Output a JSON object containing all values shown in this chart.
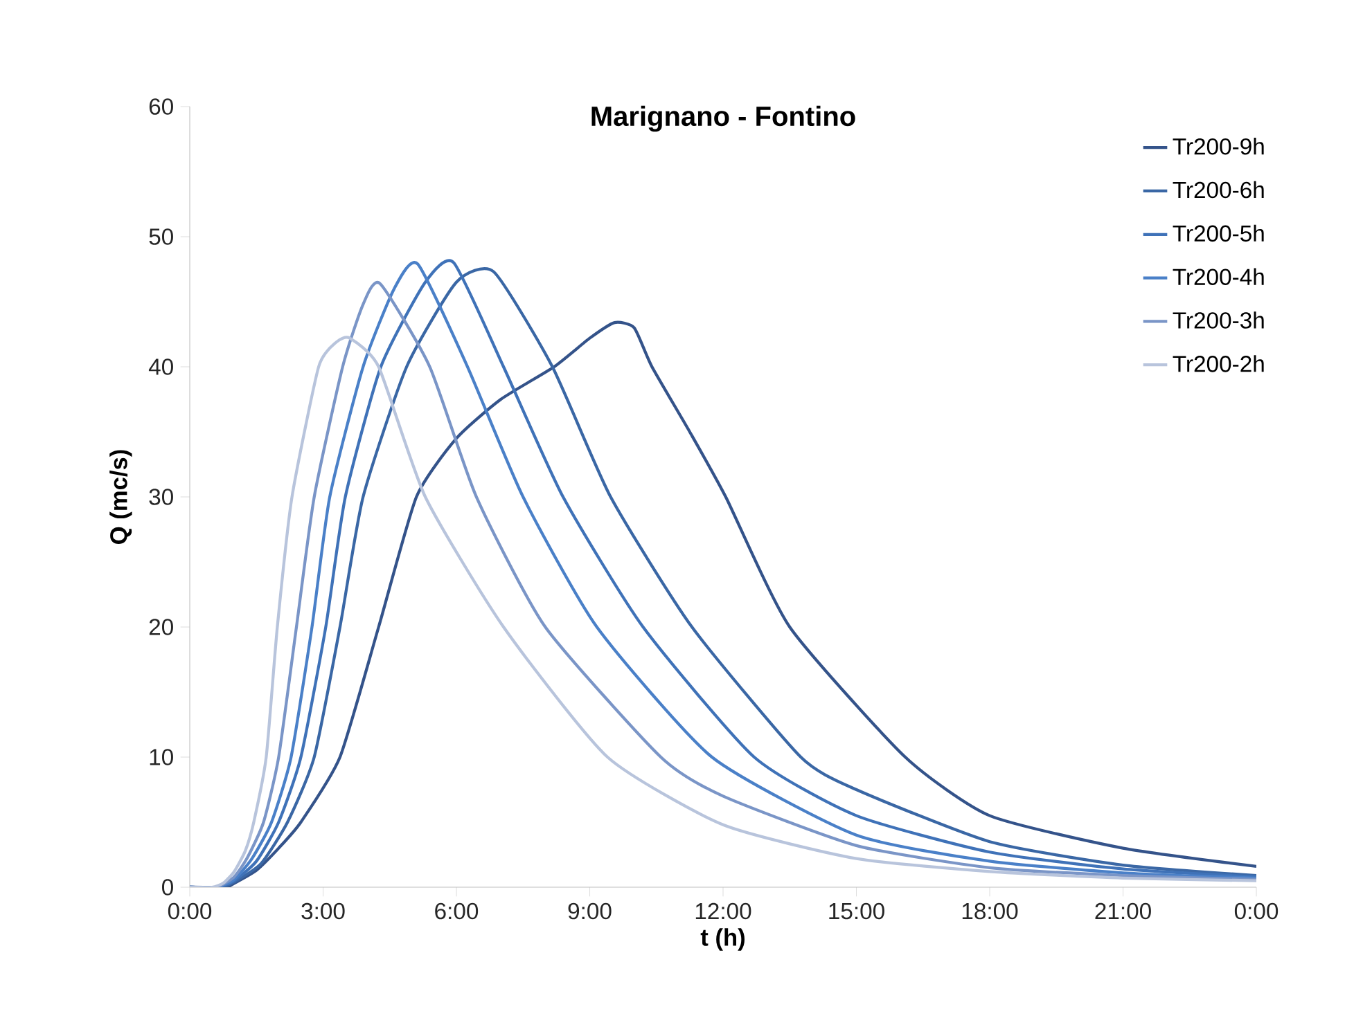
{
  "chart_data": {
    "type": "line",
    "title": "Marignano - Fontino",
    "xlabel": "t (h)",
    "ylabel": "Q (mc/s)",
    "xlim": [
      0,
      24
    ],
    "xticks": [
      {
        "value": 0,
        "label": "0:00"
      },
      {
        "value": 3,
        "label": "3:00"
      },
      {
        "value": 6,
        "label": "6:00"
      },
      {
        "value": 9,
        "label": "9:00"
      },
      {
        "value": 12,
        "label": "12:00"
      },
      {
        "value": 15,
        "label": "15:00"
      },
      {
        "value": 18,
        "label": "18:00"
      },
      {
        "value": 21,
        "label": "21:00"
      },
      {
        "value": 24,
        "label": "0:00"
      }
    ],
    "ylim": [
      0,
      60
    ],
    "yticks": [
      0,
      10,
      20,
      30,
      40,
      50,
      60
    ],
    "grid": false,
    "legend": "top right",
    "marker": "none",
    "line_style": "solid",
    "series": [
      {
        "name": "Tr200-9h",
        "color": "#34538a",
        "x": [
          0,
          0.8,
          1,
          1.5,
          2,
          2.5,
          3.38,
          4.25,
          5.1,
          6,
          7,
          8.2,
          9,
          9.56,
          10,
          10.4,
          11.25,
          12.06,
          13.5,
          16.1,
          18,
          21,
          24
        ],
        "values": [
          0,
          0,
          0.3,
          1.3,
          3,
          5,
          10,
          20,
          30,
          34.5,
          37.5,
          40,
          42.2,
          43.4,
          43,
          40,
          35,
          30,
          20,
          10,
          5.5,
          3,
          1.6
        ]
      },
      {
        "name": "Tr200-6h",
        "color": "#3a67a5",
        "x": [
          0,
          0.7,
          1,
          1.6,
          2.2,
          2.8,
          3.38,
          3.9,
          4.88,
          6,
          6.84,
          8.16,
          9.47,
          11.3,
          13.75,
          15,
          18,
          21,
          24
        ],
        "values": [
          0,
          0,
          0.4,
          1.8,
          5,
          10,
          20,
          30,
          40,
          46.5,
          47.3,
          40,
          30,
          20,
          10,
          7.5,
          3.5,
          1.7,
          0.9
        ]
      },
      {
        "name": "Tr200-5h",
        "color": "#3f72b8",
        "x": [
          0,
          0.6,
          1,
          1.5,
          2,
          2.5,
          3.06,
          3.5,
          4.3,
          5.3,
          5.94,
          7.06,
          8.4,
          10.2,
          12.7,
          15,
          18,
          21,
          24
        ],
        "values": [
          0,
          0,
          0.5,
          2,
          5,
          10,
          20,
          30,
          40,
          46.5,
          48,
          40,
          30,
          20,
          10,
          5.5,
          2.7,
          1.4,
          0.8
        ]
      },
      {
        "name": "Tr200-4h",
        "color": "#4a80c8",
        "x": [
          0,
          0.6,
          1,
          1.4,
          1.84,
          2.28,
          2.75,
          3.15,
          3.9,
          4.6,
          5.13,
          6.25,
          7.5,
          9.16,
          11.75,
          15,
          18,
          21,
          24
        ],
        "values": [
          0,
          0,
          0.6,
          2.2,
          5,
          10,
          20,
          30,
          40,
          46,
          47.9,
          40,
          30,
          20,
          10,
          4,
          2,
          1.1,
          0.7
        ]
      },
      {
        "name": "Tr200-3h",
        "color": "#7a95c7",
        "x": [
          0,
          0.6,
          1,
          1.3,
          1.66,
          2,
          2.4,
          2.8,
          3.44,
          3.9,
          4.28,
          5.4,
          6.45,
          8,
          10.6,
          12,
          15,
          18,
          21,
          24
        ],
        "values": [
          0,
          0,
          0.8,
          2.3,
          5,
          10,
          20,
          30,
          40,
          44.8,
          46.4,
          40,
          30,
          20,
          10,
          7,
          3.2,
          1.5,
          0.9,
          0.6
        ]
      },
      {
        "name": "Tr200-2h",
        "color": "#b8c4dc",
        "x": [
          0,
          0.5,
          0.75,
          1,
          1.25,
          1.44,
          1.72,
          1.97,
          2.3,
          2.9,
          3.3,
          3.6,
          4.25,
          5.3,
          7.06,
          9.4,
          12,
          15,
          18,
          21,
          24
        ],
        "values": [
          0,
          0,
          0.3,
          1.2,
          2.8,
          5,
          10,
          20,
          30,
          40,
          41.9,
          42.2,
          40,
          30,
          20,
          10,
          4.8,
          2.2,
          1.2,
          0.7,
          0.5
        ]
      }
    ]
  }
}
